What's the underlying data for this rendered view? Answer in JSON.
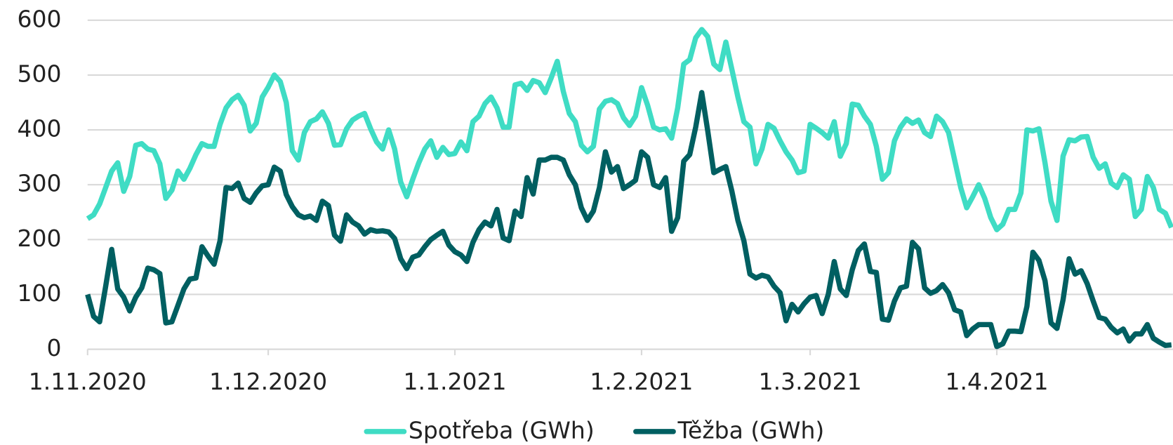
{
  "chart_data": {
    "type": "line",
    "x": [
      "2020-11-01",
      "2020-11-02",
      "2020-11-03",
      "2020-11-04",
      "2020-11-05",
      "2020-11-06",
      "2020-11-07",
      "2020-11-08",
      "2020-11-09",
      "2020-11-10",
      "2020-11-11",
      "2020-11-12",
      "2020-11-13",
      "2020-11-14",
      "2020-11-15",
      "2020-11-16",
      "2020-11-17",
      "2020-11-18",
      "2020-11-19",
      "2020-11-20",
      "2020-11-21",
      "2020-11-22",
      "2020-11-23",
      "2020-11-24",
      "2020-11-25",
      "2020-11-26",
      "2020-11-27",
      "2020-11-28",
      "2020-11-29",
      "2020-11-30",
      "2020-12-01",
      "2020-12-02",
      "2020-12-03",
      "2020-12-04",
      "2020-12-05",
      "2020-12-06",
      "2020-12-07",
      "2020-12-08",
      "2020-12-09",
      "2020-12-10",
      "2020-12-11",
      "2020-12-12",
      "2020-12-13",
      "2020-12-14",
      "2020-12-15",
      "2020-12-16",
      "2020-12-17",
      "2020-12-18",
      "2020-12-19",
      "2020-12-20",
      "2020-12-21",
      "2020-12-22",
      "2020-12-23",
      "2020-12-24",
      "2020-12-25",
      "2020-12-26",
      "2020-12-27",
      "2020-12-28",
      "2020-12-29",
      "2020-12-30",
      "2020-12-31",
      "2021-01-01",
      "2021-01-02",
      "2021-01-03",
      "2021-01-04",
      "2021-01-05",
      "2021-01-06",
      "2021-01-07",
      "2021-01-08",
      "2021-01-09",
      "2021-01-10",
      "2021-01-11",
      "2021-01-12",
      "2021-01-13",
      "2021-01-14",
      "2021-01-15",
      "2021-01-16",
      "2021-01-17",
      "2021-01-18",
      "2021-01-19",
      "2021-01-20",
      "2021-01-21",
      "2021-01-22",
      "2021-01-23",
      "2021-01-24",
      "2021-01-25",
      "2021-01-26",
      "2021-01-27",
      "2021-01-28",
      "2021-01-29",
      "2021-01-30",
      "2021-01-31",
      "2021-02-01",
      "2021-02-02",
      "2021-02-03",
      "2021-02-04",
      "2021-02-05",
      "2021-02-06",
      "2021-02-07",
      "2021-02-08",
      "2021-02-09",
      "2021-02-10",
      "2021-02-11",
      "2021-02-12",
      "2021-02-13",
      "2021-02-14",
      "2021-02-15",
      "2021-02-16",
      "2021-02-17",
      "2021-02-18",
      "2021-02-19",
      "2021-02-20",
      "2021-02-21",
      "2021-02-22",
      "2021-02-23",
      "2021-02-24",
      "2021-02-25",
      "2021-02-26",
      "2021-02-27",
      "2021-02-28",
      "2021-03-01",
      "2021-03-02",
      "2021-03-03",
      "2021-03-04",
      "2021-03-05",
      "2021-03-06",
      "2021-03-07",
      "2021-03-08",
      "2021-03-09",
      "2021-03-10",
      "2021-03-11",
      "2021-03-12",
      "2021-03-13",
      "2021-03-14",
      "2021-03-15",
      "2021-03-16",
      "2021-03-17",
      "2021-03-18",
      "2021-03-19",
      "2021-03-20",
      "2021-03-21",
      "2021-03-22",
      "2021-03-23",
      "2021-03-24",
      "2021-03-25",
      "2021-03-26",
      "2021-03-27",
      "2021-03-28",
      "2021-03-29",
      "2021-03-30",
      "2021-03-31",
      "2021-04-01",
      "2021-04-02",
      "2021-04-03",
      "2021-04-04",
      "2021-04-05",
      "2021-04-06",
      "2021-04-07",
      "2021-04-08",
      "2021-04-09",
      "2021-04-10",
      "2021-04-11",
      "2021-04-12",
      "2021-04-13",
      "2021-04-14",
      "2021-04-15",
      "2021-04-16",
      "2021-04-17",
      "2021-04-18",
      "2021-04-19",
      "2021-04-20",
      "2021-04-21",
      "2021-04-22",
      "2021-04-23",
      "2021-04-24",
      "2021-04-25",
      "2021-04-26",
      "2021-04-27",
      "2021-04-28",
      "2021-04-29",
      "2021-04-30"
    ],
    "series": [
      {
        "name": "Spotřeba (GWh)",
        "color": "#3fdcc4",
        "values": [
          238,
          245,
          265,
          295,
          325,
          340,
          288,
          315,
          372,
          375,
          365,
          362,
          338,
          275,
          290,
          325,
          310,
          330,
          355,
          375,
          370,
          370,
          410,
          440,
          455,
          463,
          445,
          398,
          412,
          460,
          478,
          500,
          488,
          450,
          362,
          345,
          395,
          415,
          420,
          433,
          412,
          372,
          373,
          402,
          418,
          425,
          430,
          402,
          378,
          365,
          400,
          365,
          305,
          278,
          310,
          340,
          365,
          380,
          350,
          368,
          355,
          357,
          378,
          362,
          415,
          425,
          448,
          460,
          440,
          405,
          405,
          482,
          485,
          472,
          490,
          486,
          468,
          495,
          525,
          470,
          430,
          415,
          372,
          360,
          370,
          438,
          452,
          455,
          448,
          422,
          408,
          425,
          477,
          445,
          405,
          400,
          402,
          385,
          440,
          520,
          528,
          568,
          583,
          570,
          520,
          510,
          560,
          510,
          460,
          415,
          405,
          338,
          365,
          410,
          403,
          380,
          360,
          345,
          322,
          325,
          410,
          403,
          395,
          385,
          415,
          352,
          375,
          447,
          445,
          425,
          410,
          370,
          310,
          322,
          380,
          405,
          420,
          412,
          418,
          395,
          388,
          425,
          415,
          395,
          345,
          295,
          258,
          278,
          300,
          275,
          240,
          218,
          228,
          255,
          255,
          285,
          400,
          398,
          402,
          340,
          270,
          235,
          352,
          382,
          380,
          387,
          388,
          350,
          330,
          338,
          303,
          295,
          318,
          310,
          242,
          255,
          315,
          295,
          255,
          248,
          222
        ]
      },
      {
        "name": "Těžba (GWh)",
        "color": "#005f61",
        "values": [
          100,
          60,
          50,
          115,
          182,
          110,
          95,
          70,
          95,
          112,
          148,
          145,
          138,
          48,
          50,
          80,
          110,
          128,
          130,
          187,
          170,
          155,
          198,
          295,
          293,
          303,
          275,
          268,
          285,
          298,
          300,
          332,
          325,
          282,
          260,
          245,
          240,
          243,
          235,
          270,
          262,
          208,
          197,
          245,
          232,
          225,
          210,
          218,
          215,
          216,
          214,
          202,
          165,
          147,
          168,
          172,
          187,
          200,
          208,
          215,
          190,
          178,
          172,
          160,
          195,
          218,
          232,
          225,
          255,
          203,
          198,
          252,
          242,
          313,
          283,
          345,
          345,
          350,
          350,
          345,
          318,
          300,
          258,
          235,
          252,
          295,
          360,
          323,
          333,
          293,
          300,
          308,
          360,
          350,
          300,
          295,
          313,
          215,
          240,
          343,
          355,
          405,
          468,
          398,
          322,
          328,
          333,
          288,
          235,
          198,
          137,
          130,
          135,
          132,
          115,
          103,
          52,
          82,
          68,
          83,
          95,
          98,
          65,
          100,
          160,
          110,
          98,
          145,
          180,
          192,
          142,
          140,
          55,
          53,
          88,
          112,
          115,
          195,
          183,
          112,
          102,
          107,
          118,
          103,
          72,
          68,
          25,
          37,
          45,
          45,
          45,
          5,
          10,
          33,
          33,
          32,
          78,
          177,
          162,
          125,
          48,
          38,
          90,
          165,
          137,
          143,
          120,
          88,
          58,
          55,
          40,
          30,
          37,
          15,
          28,
          28,
          45,
          20,
          13,
          7,
          8
        ]
      }
    ],
    "xlim": [
      "2020-11-01",
      "2021-04-30"
    ],
    "xticks": [
      {
        "value": "2020-11-01",
        "label": "1.11.2020"
      },
      {
        "value": "2020-12-01",
        "label": "1.12.2020"
      },
      {
        "value": "2021-01-01",
        "label": "1.1.2021"
      },
      {
        "value": "2021-02-01",
        "label": "1.2.2021"
      },
      {
        "value": "2021-03-01",
        "label": "1.3.2021"
      },
      {
        "value": "2021-04-01",
        "label": "1.4.2021"
      }
    ],
    "ylim": [
      0,
      600
    ],
    "yticks": [
      0,
      100,
      200,
      300,
      400,
      500,
      600
    ],
    "grid": true,
    "legend": "bottom"
  }
}
